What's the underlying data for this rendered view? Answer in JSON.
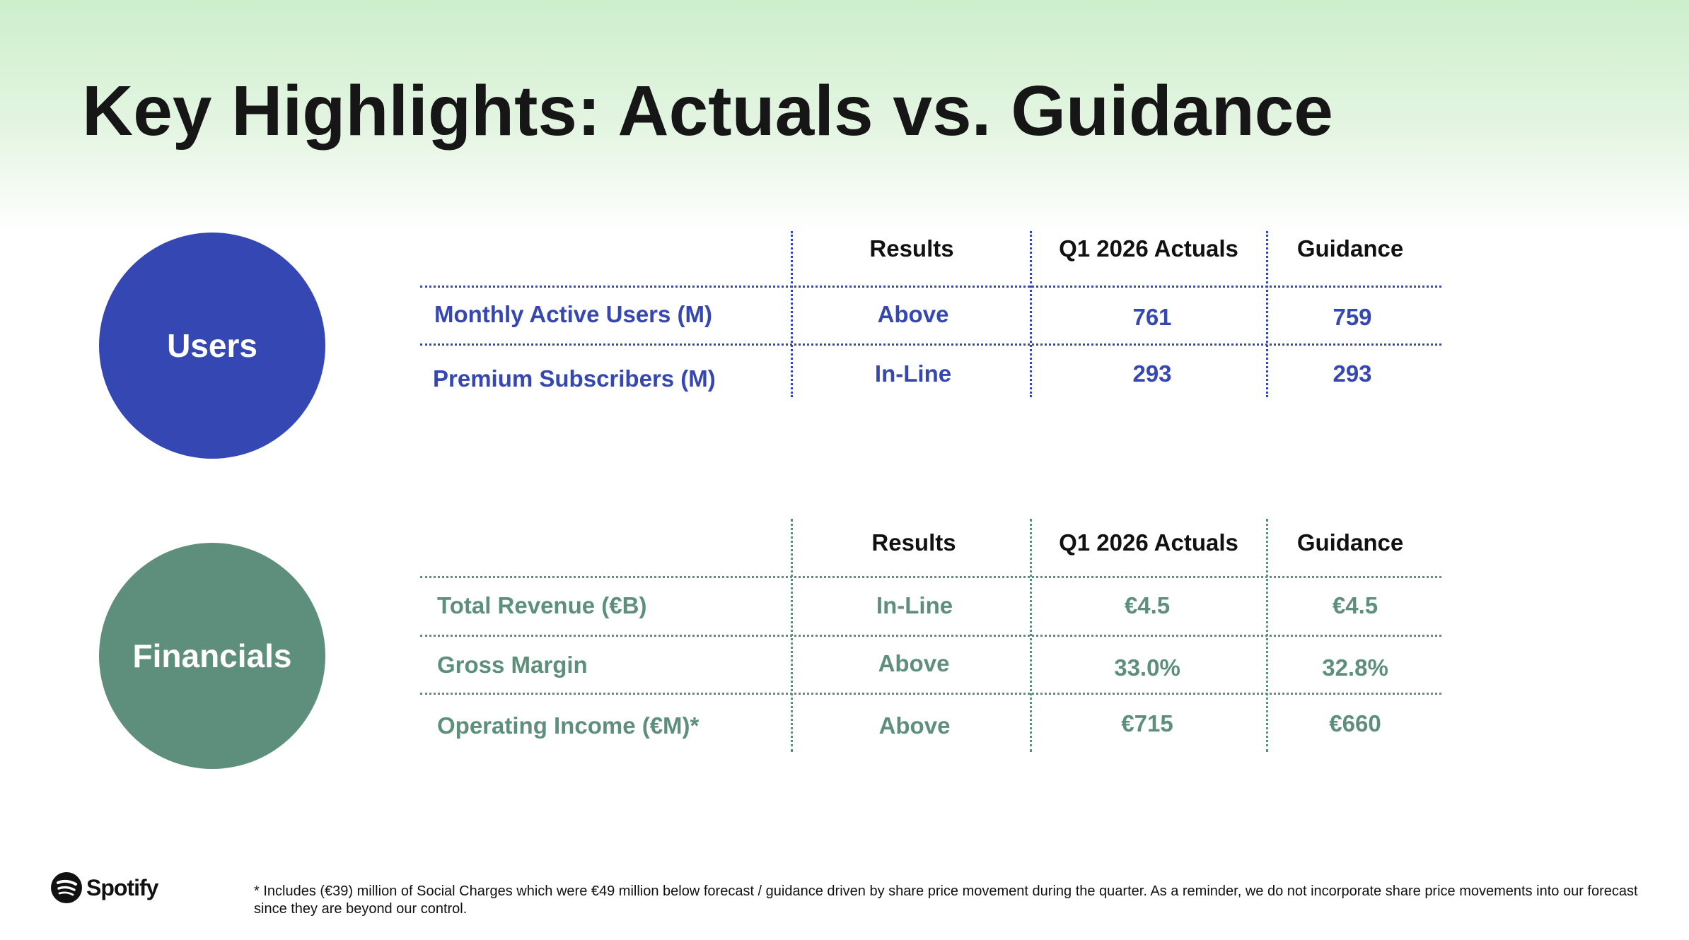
{
  "title": "Key Highlights: Actuals vs. Guidance",
  "colors": {
    "users": "#3547b3",
    "financials": "#5e8f7d"
  },
  "users": {
    "label": "Users",
    "headers": [
      "Results",
      "Q1 2026 Actuals",
      "Guidance"
    ],
    "rows": [
      {
        "metric": "Monthly Active Users (M)",
        "result": "Above",
        "actual": "761",
        "guidance": "759"
      },
      {
        "metric": "Premium Subscribers (M)",
        "result": "In-Line",
        "actual": "293",
        "guidance": "293"
      }
    ]
  },
  "financials": {
    "label": "Financials",
    "headers": [
      "Results",
      "Q1 2026 Actuals",
      "Guidance"
    ],
    "rows": [
      {
        "metric": "Total Revenue (€B)",
        "result": "In-Line",
        "actual": "€4.5",
        "guidance": "€4.5"
      },
      {
        "metric": "Gross Margin",
        "result": "Above",
        "actual": "33.0%",
        "guidance": "32.8%"
      },
      {
        "metric": "Operating Income (€M)*",
        "result": "Above",
        "actual": "€715",
        "guidance": "€660"
      }
    ]
  },
  "footer": {
    "logo": "Spotify",
    "note": "* Includes (€39) million of Social Charges which were €49 million below forecast / guidance driven by share price movement during the quarter. As a reminder, we do not incorporate share price movements into our forecast since they are beyond our control."
  }
}
